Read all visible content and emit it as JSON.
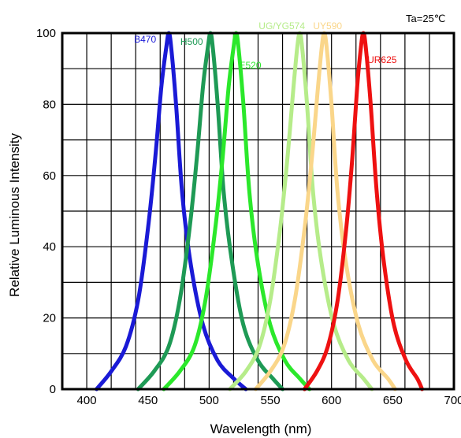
{
  "chart_data": {
    "type": "line",
    "title": "",
    "xlabel": "Wavelength (nm)",
    "ylabel": "Relative Luminous Intensity",
    "annotation": "Ta=25℃",
    "xlim": [
      380,
      700
    ],
    "ylim": [
      0,
      100
    ],
    "xticks": [
      400,
      450,
      500,
      550,
      600,
      650,
      700
    ],
    "yticks": [
      0,
      20,
      40,
      60,
      80,
      100
    ],
    "grid": true,
    "series": [
      {
        "name": "B470",
        "color": "#1a1ad6",
        "x": [
          408,
          420,
          432,
          442,
          450,
          456,
          461,
          465,
          467,
          469,
          473,
          478,
          485,
          495,
          507,
          520,
          530
        ],
        "y": [
          0,
          5,
          12,
          25,
          45,
          65,
          85,
          96,
          100,
          96,
          80,
          55,
          35,
          18,
          8,
          3,
          0
        ]
      },
      {
        "name": "H500",
        "color": "#1e9a55",
        "x": [
          442,
          455,
          467,
          476,
          484,
          490,
          495,
          499,
          501,
          503,
          507,
          512,
          519,
          528,
          540,
          552,
          560
        ],
        "y": [
          0,
          5,
          12,
          25,
          45,
          65,
          85,
          96,
          100,
          96,
          80,
          55,
          35,
          18,
          8,
          3,
          0
        ]
      },
      {
        "name": "E520",
        "color": "#2be82b",
        "x": [
          463,
          476,
          488,
          497,
          505,
          511,
          516,
          520,
          522,
          524,
          528,
          533,
          540,
          550,
          562,
          574,
          582
        ],
        "y": [
          0,
          5,
          12,
          25,
          45,
          65,
          85,
          96,
          100,
          96,
          80,
          55,
          35,
          18,
          8,
          3,
          0
        ]
      },
      {
        "name": "UG/YG574",
        "color": "#b6ec8a",
        "x": [
          517,
          530,
          541,
          550,
          558,
          564,
          569,
          572,
          574,
          576,
          580,
          585,
          592,
          602,
          614,
          626,
          633
        ],
        "y": [
          0,
          5,
          12,
          25,
          45,
          65,
          85,
          96,
          100,
          96,
          80,
          55,
          35,
          18,
          8,
          3,
          0
        ]
      },
      {
        "name": "UY590",
        "color": "#fad68a",
        "x": [
          538,
          550,
          561,
          570,
          578,
          584,
          589,
          592,
          594,
          596,
          600,
          605,
          612,
          622,
          634,
          646,
          652
        ],
        "y": [
          0,
          5,
          12,
          25,
          45,
          65,
          85,
          96,
          100,
          96,
          80,
          55,
          35,
          18,
          8,
          3,
          0
        ]
      },
      {
        "name": "UR625",
        "color": "#ee1111",
        "x": [
          578,
          588,
          597,
          605,
          612,
          617,
          621,
          624,
          626,
          628,
          632,
          637,
          643,
          651,
          661,
          670,
          674
        ],
        "y": [
          0,
          5,
          12,
          25,
          45,
          65,
          85,
          96,
          100,
          96,
          80,
          55,
          35,
          18,
          8,
          3,
          0
        ]
      }
    ]
  }
}
